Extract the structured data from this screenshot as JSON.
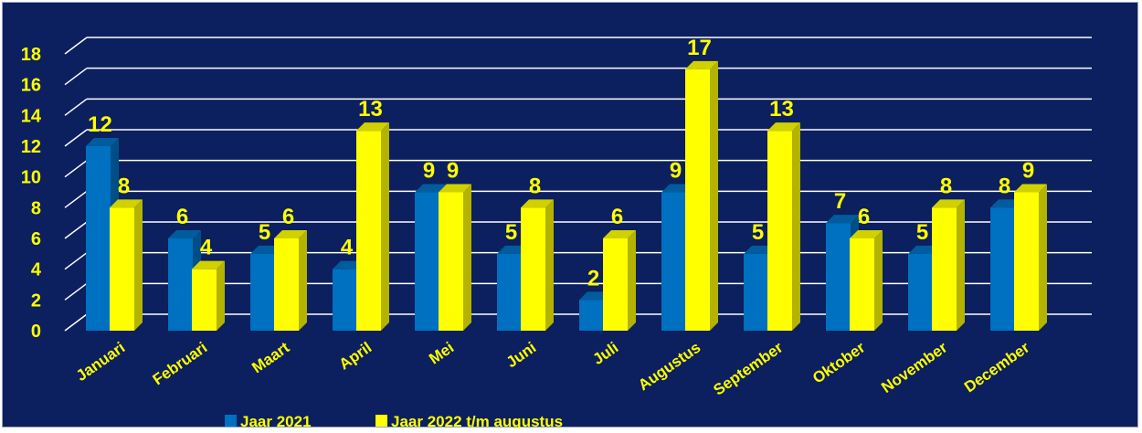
{
  "chart_data": {
    "type": "bar",
    "categories": [
      "Januari",
      "Februari",
      "Maart",
      "April",
      "Mei",
      "Juni",
      "Juli",
      "Augustus",
      "September",
      "Oktober",
      "November",
      "December"
    ],
    "series": [
      {
        "name": "Jaar 2021",
        "values": [
          12,
          6,
          5,
          4,
          9,
          5,
          2,
          9,
          5,
          7,
          5,
          8
        ]
      },
      {
        "name": "Jaar 2022 t/m augustus",
        "values": [
          8,
          4,
          6,
          13,
          9,
          8,
          6,
          17,
          13,
          6,
          8,
          9
        ]
      }
    ],
    "ylim": [
      0,
      18
    ],
    "yticks": [
      0,
      2,
      4,
      6,
      8,
      10,
      12,
      14,
      16,
      18
    ],
    "grid": true,
    "legend_position": "bottom",
    "colors": {
      "background": "#0c1f5e",
      "series_1": "#0070c0",
      "series_2": "#ffff00",
      "labels": "#ffff00",
      "grid": "#ffffff"
    }
  }
}
